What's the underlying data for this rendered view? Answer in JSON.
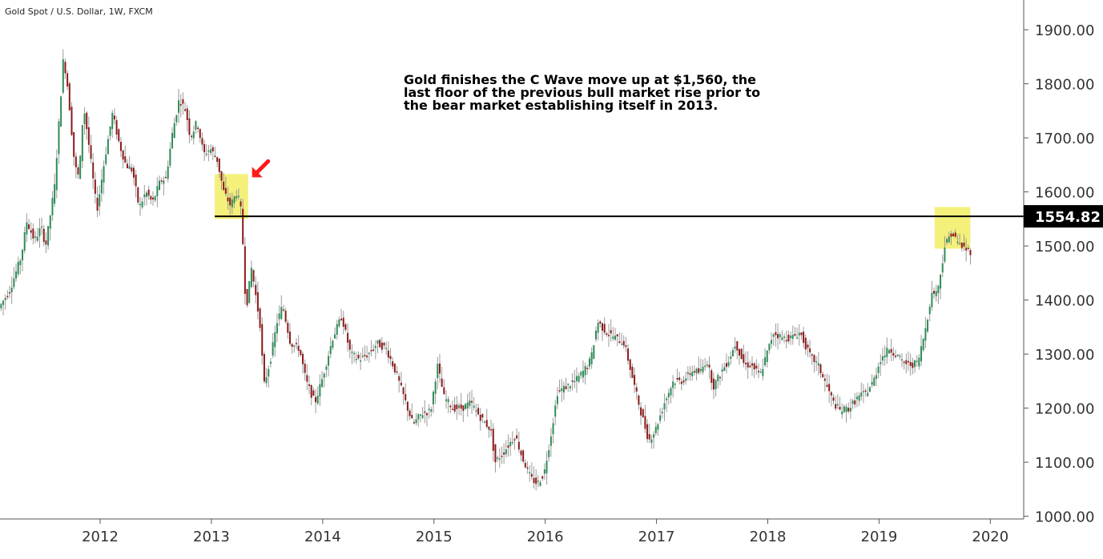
{
  "chart_title": "Gold Spot / U.S. Dollar, 1W, FXCM",
  "annotation_lines": [
    "Gold finishes the C Wave move up at $1,560, the",
    "last floor of the previous bull market rise prior to",
    "the bear market establishing itself in 2013."
  ],
  "colors": {
    "up": "#2e8b57",
    "down": "#8b1a1a",
    "wick": "#9a9a9a",
    "highlight": "#f5f07a",
    "arrow": "#ff1a1a",
    "price_label_bg": "#000000",
    "price_label_text": "#ffffff"
  },
  "icons": {
    "marker": "red-arrow-icon"
  },
  "chart_data": {
    "type": "candlestick",
    "symbol": "XAUUSD",
    "interval": "1W",
    "y_axis": {
      "ticks": [
        1000,
        1100,
        1200,
        1300,
        1400,
        1500,
        1600,
        1700,
        1800,
        1900
      ],
      "tick_labels": [
        "1000.00",
        "1100.00",
        "1200.00",
        "1300.00",
        "1400.00",
        "1500.00",
        "1600.00",
        "1700.00",
        "1800.00",
        "1900.00"
      ],
      "range": [
        995,
        1955
      ],
      "position": "right"
    },
    "x_axis": {
      "ticks": [
        2012,
        2013,
        2014,
        2015,
        2016,
        2017,
        2018,
        2019,
        2020
      ],
      "tick_labels": [
        "2012",
        "2013",
        "2014",
        "2015",
        "2016",
        "2017",
        "2018",
        "2019",
        "2020"
      ],
      "range": [
        2011.1,
        2020.3
      ]
    },
    "horizontal_line": {
      "value": 1554.82,
      "label": "1554.82",
      "from_x": 2013.03
    },
    "highlight_zones": [
      {
        "x": [
          2013.03,
          2013.33
        ],
        "y": [
          1550,
          1633
        ]
      },
      {
        "x": [
          2019.5,
          2019.82
        ],
        "y": [
          1495,
          1572
        ]
      }
    ],
    "arrow_marker": {
      "x": 2013.38,
      "y": 1630,
      "direction": "down-left"
    },
    "price_path": [
      [
        2011.1,
        1385
      ],
      [
        2011.2,
        1420
      ],
      [
        2011.3,
        1480
      ],
      [
        2011.35,
        1545
      ],
      [
        2011.42,
        1510
      ],
      [
        2011.48,
        1535
      ],
      [
        2011.52,
        1500
      ],
      [
        2011.6,
        1610
      ],
      [
        2011.65,
        1760
      ],
      [
        2011.68,
        1850
      ],
      [
        2011.72,
        1790
      ],
      [
        2011.78,
        1650
      ],
      [
        2011.82,
        1625
      ],
      [
        2011.86,
        1760
      ],
      [
        2011.9,
        1700
      ],
      [
        2011.98,
        1565
      ],
      [
        2012.05,
        1660
      ],
      [
        2012.12,
        1745
      ],
      [
        2012.18,
        1690
      ],
      [
        2012.24,
        1650
      ],
      [
        2012.3,
        1640
      ],
      [
        2012.36,
        1570
      ],
      [
        2012.42,
        1600
      ],
      [
        2012.48,
        1580
      ],
      [
        2012.55,
        1620
      ],
      [
        2012.6,
        1625
      ],
      [
        2012.66,
        1710
      ],
      [
        2012.72,
        1772
      ],
      [
        2012.78,
        1750
      ],
      [
        2012.82,
        1700
      ],
      [
        2012.88,
        1730
      ],
      [
        2012.94,
        1670
      ],
      [
        2013.0,
        1680
      ],
      [
        2013.06,
        1660
      ],
      [
        2013.12,
        1600
      ],
      [
        2013.18,
        1575
      ],
      [
        2013.24,
        1600
      ],
      [
        2013.28,
        1560
      ],
      [
        2013.32,
        1380
      ],
      [
        2013.37,
        1460
      ],
      [
        2013.45,
        1350
      ],
      [
        2013.48,
        1240
      ],
      [
        2013.54,
        1290
      ],
      [
        2013.6,
        1360
      ],
      [
        2013.65,
        1390
      ],
      [
        2013.72,
        1320
      ],
      [
        2013.8,
        1310
      ],
      [
        2013.86,
        1250
      ],
      [
        2013.94,
        1210
      ],
      [
        2014.0,
        1250
      ],
      [
        2014.1,
        1330
      ],
      [
        2014.18,
        1370
      ],
      [
        2014.26,
        1300
      ],
      [
        2014.34,
        1290
      ],
      [
        2014.42,
        1300
      ],
      [
        2014.5,
        1320
      ],
      [
        2014.58,
        1310
      ],
      [
        2014.66,
        1270
      ],
      [
        2014.74,
        1220
      ],
      [
        2014.82,
        1170
      ],
      [
        2014.9,
        1190
      ],
      [
        2014.98,
        1195
      ],
      [
        2015.04,
        1280
      ],
      [
        2015.1,
        1220
      ],
      [
        2015.18,
        1200
      ],
      [
        2015.26,
        1200
      ],
      [
        2015.34,
        1210
      ],
      [
        2015.42,
        1185
      ],
      [
        2015.52,
        1160
      ],
      [
        2015.56,
        1100
      ],
      [
        2015.64,
        1120
      ],
      [
        2015.74,
        1150
      ],
      [
        2015.8,
        1110
      ],
      [
        2015.88,
        1070
      ],
      [
        2015.94,
        1060
      ],
      [
        2016.0,
        1080
      ],
      [
        2016.06,
        1150
      ],
      [
        2016.12,
        1230
      ],
      [
        2016.2,
        1240
      ],
      [
        2016.28,
        1250
      ],
      [
        2016.36,
        1270
      ],
      [
        2016.42,
        1290
      ],
      [
        2016.48,
        1360
      ],
      [
        2016.56,
        1340
      ],
      [
        2016.64,
        1330
      ],
      [
        2016.72,
        1320
      ],
      [
        2016.8,
        1250
      ],
      [
        2016.86,
        1200
      ],
      [
        2016.94,
        1140
      ],
      [
        2017.0,
        1160
      ],
      [
        2017.08,
        1210
      ],
      [
        2017.16,
        1250
      ],
      [
        2017.24,
        1250
      ],
      [
        2017.34,
        1270
      ],
      [
        2017.4,
        1265
      ],
      [
        2017.46,
        1290
      ],
      [
        2017.52,
        1240
      ],
      [
        2017.6,
        1270
      ],
      [
        2017.66,
        1290
      ],
      [
        2017.72,
        1320
      ],
      [
        2017.8,
        1280
      ],
      [
        2017.86,
        1280
      ],
      [
        2017.94,
        1260
      ],
      [
        2018.0,
        1300
      ],
      [
        2018.06,
        1340
      ],
      [
        2018.14,
        1330
      ],
      [
        2018.22,
        1330
      ],
      [
        2018.3,
        1340
      ],
      [
        2018.38,
        1300
      ],
      [
        2018.46,
        1280
      ],
      [
        2018.54,
        1240
      ],
      [
        2018.6,
        1210
      ],
      [
        2018.66,
        1195
      ],
      [
        2018.74,
        1200
      ],
      [
        2018.82,
        1220
      ],
      [
        2018.9,
        1230
      ],
      [
        2018.96,
        1250
      ],
      [
        2019.02,
        1290
      ],
      [
        2019.1,
        1310
      ],
      [
        2019.16,
        1300
      ],
      [
        2019.22,
        1285
      ],
      [
        2019.3,
        1280
      ],
      [
        2019.36,
        1285
      ],
      [
        2019.42,
        1340
      ],
      [
        2019.48,
        1410
      ],
      [
        2019.54,
        1420
      ],
      [
        2019.6,
        1500
      ],
      [
        2019.66,
        1525
      ],
      [
        2019.72,
        1505
      ],
      [
        2019.78,
        1495
      ],
      [
        2019.82,
        1490
      ]
    ]
  }
}
